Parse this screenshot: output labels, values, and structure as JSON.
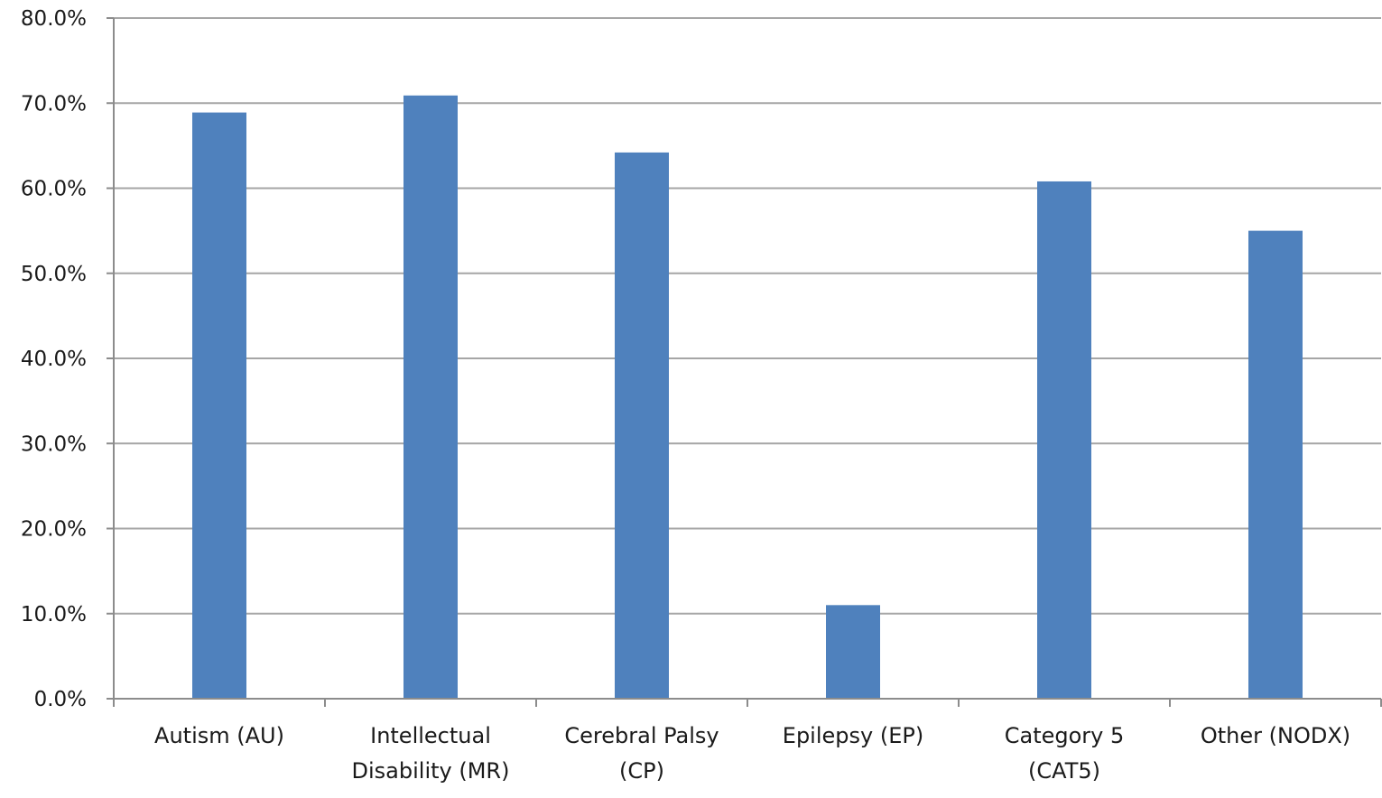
{
  "chart_data": {
    "type": "bar",
    "title": "",
    "xlabel": "",
    "ylabel": "",
    "categories": [
      [
        "Autism (AU)"
      ],
      [
        "Intellectual",
        "Disability (MR)"
      ],
      [
        "Cerebral Palsy",
        "(CP)"
      ],
      [
        "Epilepsy (EP)"
      ],
      [
        "Category 5",
        "(CAT5)"
      ],
      [
        "Other (NODX)"
      ]
    ],
    "values": [
      68.9,
      70.9,
      64.2,
      11.0,
      60.8,
      55.0
    ],
    "ylim": [
      0,
      80
    ],
    "yticks": [
      0,
      10,
      20,
      30,
      40,
      50,
      60,
      70,
      80
    ],
    "ytick_labels": [
      "0.0%",
      "10.0%",
      "20.0%",
      "30.0%",
      "40.0%",
      "50.0%",
      "60.0%",
      "70.0%",
      "80.0%"
    ],
    "grid": true,
    "legend": "none",
    "bar_color": "#4f81bd"
  }
}
